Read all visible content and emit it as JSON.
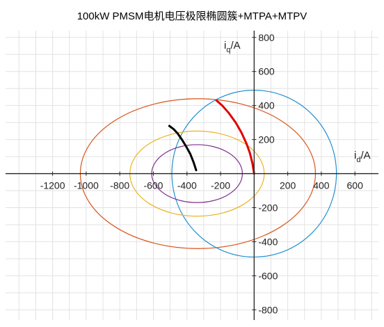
{
  "chart_data": {
    "type": "line",
    "title": "100kW PMSM电机电压极限椭圆簇+MTPA+MTPV",
    "xlabel": {
      "main": "i",
      "sub": "d",
      "unit": "/A"
    },
    "ylabel": {
      "main": "i",
      "sub": "q",
      "unit": "/A"
    },
    "xlim": [
      -1480,
      740
    ],
    "ylim": [
      -860,
      840
    ],
    "grid": true,
    "axes_through_origin": true,
    "x_ticks": [
      -1200,
      -1000,
      -800,
      -600,
      -400,
      -200,
      200,
      400,
      600
    ],
    "x_tick_labels": [
      "-1200",
      "-1000",
      "-800",
      "-600",
      "-400",
      "-200",
      "200",
      "400",
      "600"
    ],
    "y_ticks": [
      -800,
      -600,
      -400,
      -200,
      200,
      400,
      600,
      800
    ],
    "y_tick_labels": [
      "-800",
      "-600",
      "-400",
      "-200",
      "200",
      "400",
      "600",
      "800"
    ],
    "series": [
      {
        "kind": "circle",
        "cx": 0,
        "cy": 0,
        "r": 490,
        "color": "#1f8fd0"
      },
      {
        "kind": "ellipse",
        "cx": -335,
        "cy": 0,
        "rx": 700,
        "ry": 440,
        "color": "#d9541c"
      },
      {
        "kind": "ellipse",
        "cx": -340,
        "cy": 0,
        "rx": 400,
        "ry": 250,
        "color": "#edb21f"
      },
      {
        "kind": "ellipse",
        "cx": -340,
        "cy": 0,
        "rx": 270,
        "ry": 170,
        "color": "#7e2f8e"
      },
      {
        "kind": "curve",
        "color": "#e00000",
        "width": 3,
        "x": [
          0,
          -10,
          -25,
          -45,
          -75,
          -110,
          -150,
          -190,
          -225
        ],
        "y": [
          0,
          60,
          120,
          175,
          240,
          300,
          355,
          400,
          430
        ]
      },
      {
        "kind": "curve",
        "color": "#000000",
        "width": 3,
        "x": [
          -345,
          -360,
          -380,
          -405,
          -430,
          -455,
          -480,
          -505
        ],
        "y": [
          20,
          65,
          115,
          160,
          200,
          235,
          262,
          280
        ]
      }
    ]
  }
}
